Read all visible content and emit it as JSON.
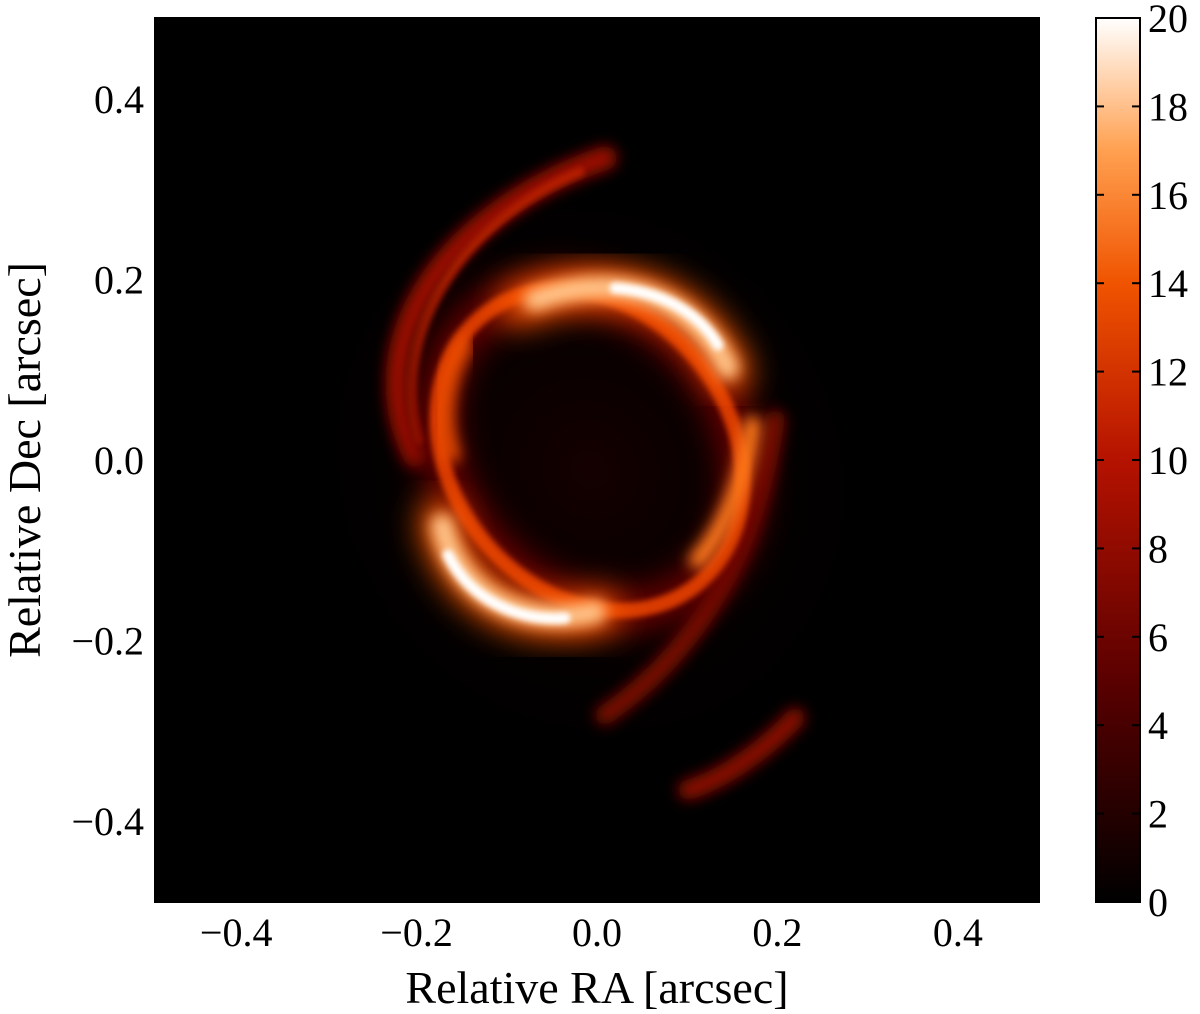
{
  "chart_data": {
    "type": "heatmap",
    "title": "",
    "xlabel": "Relative RA [arcsec]",
    "ylabel": "Relative Dec [arcsec]",
    "xlim": [
      -0.49,
      0.49
    ],
    "ylim": [
      -0.49,
      0.49
    ],
    "x_ticks": [
      -0.4,
      -0.2,
      0.0,
      0.2,
      0.4
    ],
    "y_ticks": [
      -0.4,
      -0.2,
      0.0,
      0.2,
      0.4
    ],
    "x_tick_labels": [
      "−0.4",
      "−0.2",
      "0.0",
      "0.2",
      "0.4"
    ],
    "y_tick_labels": [
      "−0.4",
      "−0.2",
      "0.0",
      "0.2",
      "0.4"
    ],
    "colormap": "gist_heat",
    "colorbar": {
      "vmin": 0,
      "vmax": 20,
      "ticks": [
        0,
        2,
        4,
        6,
        8,
        10,
        12,
        14,
        16,
        18,
        20
      ],
      "tick_labels": [
        "0",
        "2",
        "4",
        "6",
        "8",
        "10",
        "12",
        "14",
        "16",
        "18",
        "20"
      ]
    },
    "features": [
      {
        "name": "main-ring-upper-arc",
        "center": [
          0.07,
          0.15
        ],
        "peak": 20
      },
      {
        "name": "main-ring-lower-arc",
        "center": [
          -0.12,
          -0.15
        ],
        "peak": 20
      },
      {
        "name": "main-ring-right-arc",
        "center": [
          0.17,
          -0.02
        ],
        "peak": 14
      },
      {
        "name": "main-ring-left-arc",
        "center": [
          -0.15,
          0.02
        ],
        "peak": 11
      },
      {
        "name": "outer-arc-upper-left",
        "center": [
          -0.15,
          0.2
        ],
        "peak": 9
      },
      {
        "name": "outer-arc-lower-right",
        "center": [
          0.14,
          -0.2
        ],
        "peak": 7
      },
      {
        "name": "outer-arc-bottom",
        "center": [
          0.16,
          -0.34
        ],
        "peak": 7
      }
    ]
  }
}
